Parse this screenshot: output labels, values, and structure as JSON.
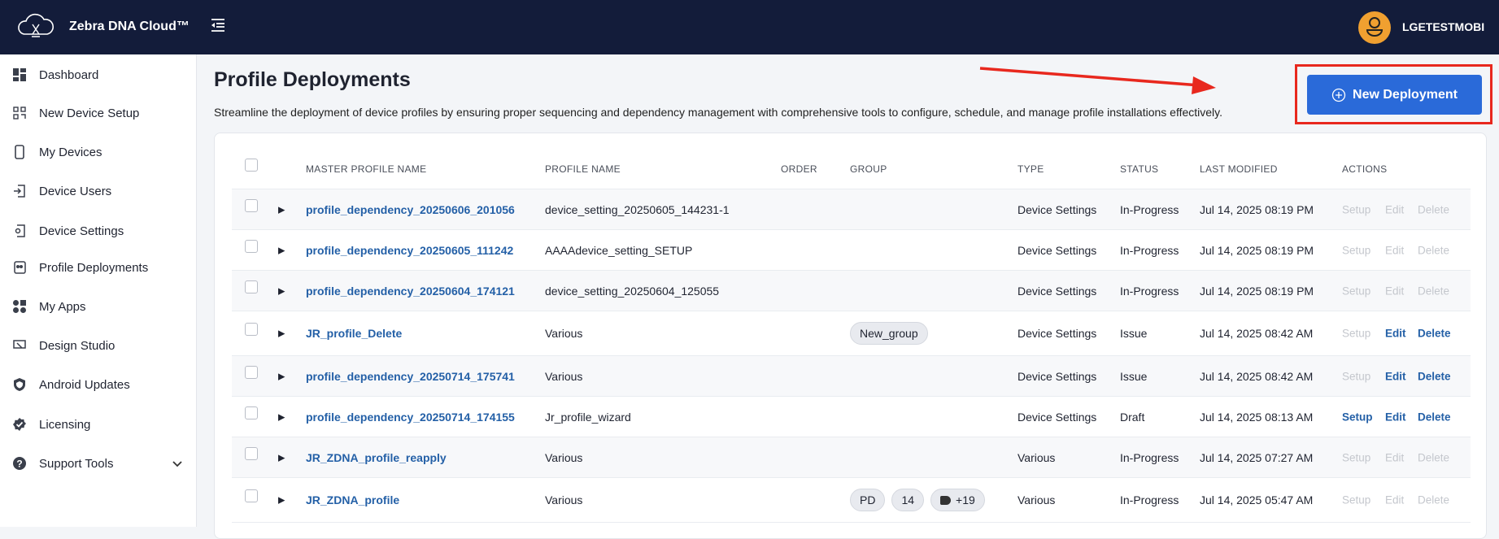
{
  "header": {
    "brand": "Zebra DNA Cloud™",
    "username": "LGETESTMOBI"
  },
  "sidebar": {
    "items": [
      {
        "label": "Dashboard",
        "icon": "dashboard-icon"
      },
      {
        "label": "New Device Setup",
        "icon": "qr-code-icon"
      },
      {
        "label": "My Devices",
        "icon": "phone-icon"
      },
      {
        "label": "Device Users",
        "icon": "login-icon"
      },
      {
        "label": "Device Settings",
        "icon": "device-settings-icon"
      },
      {
        "label": "Profile Deployments",
        "icon": "profile-deployments-icon"
      },
      {
        "label": "My Apps",
        "icon": "apps-icon"
      },
      {
        "label": "Design Studio",
        "icon": "design-studio-icon"
      },
      {
        "label": "Android Updates",
        "icon": "shield-icon"
      },
      {
        "label": "Licensing",
        "icon": "verified-badge-icon"
      },
      {
        "label": "Support Tools",
        "icon": "help-icon"
      }
    ]
  },
  "page": {
    "title": "Profile Deployments",
    "description": "Streamline the deployment of device profiles by ensuring proper sequencing and dependency management with comprehensive tools to configure, schedule, and manage profile installations effectively.",
    "new_button": "New Deployment"
  },
  "colors": {
    "accent": "#2a6ad9",
    "link": "#2460a7",
    "annotation": "#e8281e",
    "topbar": "#131c3a"
  },
  "table": {
    "columns": [
      "MASTER PROFILE NAME",
      "PROFILE NAME",
      "ORDER",
      "GROUP",
      "TYPE",
      "STATUS",
      "LAST MODIFIED",
      "ACTIONS"
    ],
    "actions": [
      "Setup",
      "Edit",
      "Delete"
    ],
    "rows": [
      {
        "master": "profile_dependency_20250606_201056",
        "profile": "device_setting_20250605_144231-1",
        "order": "",
        "groups": [],
        "type": "Device Settings",
        "status": "In-Progress",
        "modified": "Jul 14, 2025 08:19 PM",
        "setup": false,
        "edit": false,
        "delete": false
      },
      {
        "master": "profile_dependency_20250605_111242",
        "profile": "AAAAdevice_setting_SETUP",
        "order": "",
        "groups": [],
        "type": "Device Settings",
        "status": "In-Progress",
        "modified": "Jul 14, 2025 08:19 PM",
        "setup": false,
        "edit": false,
        "delete": false
      },
      {
        "master": "profile_dependency_20250604_174121",
        "profile": "device_setting_20250604_125055",
        "order": "",
        "groups": [],
        "type": "Device Settings",
        "status": "In-Progress",
        "modified": "Jul 14, 2025 08:19 PM",
        "setup": false,
        "edit": false,
        "delete": false
      },
      {
        "master": "JR_profile_Delete",
        "profile": "Various",
        "order": "",
        "groups": [
          "New_group"
        ],
        "type": "Device Settings",
        "status": "Issue",
        "modified": "Jul 14, 2025 08:42 AM",
        "setup": false,
        "edit": true,
        "delete": true
      },
      {
        "master": "profile_dependency_20250714_175741",
        "profile": "Various",
        "order": "",
        "groups": [],
        "type": "Device Settings",
        "status": "Issue",
        "modified": "Jul 14, 2025 08:42 AM",
        "setup": false,
        "edit": true,
        "delete": true
      },
      {
        "master": "profile_dependency_20250714_174155",
        "profile": "Jr_profile_wizard",
        "order": "",
        "groups": [],
        "type": "Device Settings",
        "status": "Draft",
        "modified": "Jul 14, 2025 08:13 AM",
        "setup": true,
        "edit": true,
        "delete": true
      },
      {
        "master": "JR_ZDNA_profile_reapply",
        "profile": "Various",
        "order": "",
        "groups": [],
        "type": "Various",
        "status": "In-Progress",
        "modified": "Jul 14, 2025 07:27 AM",
        "setup": false,
        "edit": false,
        "delete": false
      },
      {
        "master": "JR_ZDNA_profile",
        "profile": "Various",
        "order": "",
        "groups": [
          "PD",
          "14",
          "+19"
        ],
        "type": "Various",
        "status": "In-Progress",
        "modified": "Jul 14, 2025 05:47 AM",
        "setup": false,
        "edit": false,
        "delete": false
      }
    ]
  }
}
